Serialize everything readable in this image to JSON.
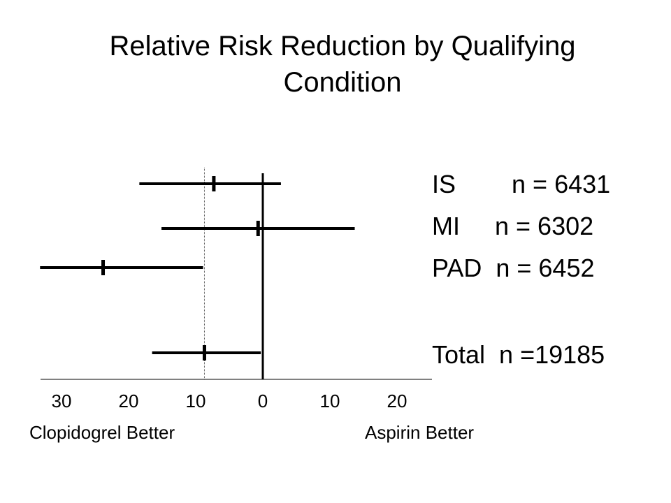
{
  "slide": {
    "title_line1": "Relative Risk Reduction by Qualifying",
    "title_line2": "Condition"
  },
  "chart_data": {
    "type": "forest",
    "title": "Relative Risk Reduction by Qualifying Condition",
    "x_tick_labels": [
      "30",
      "20",
      "10",
      "0",
      "10",
      "20"
    ],
    "x_tick_values": [
      30,
      20,
      10,
      0,
      -10,
      -20
    ],
    "x_axis_note": "RRR %, positive values to the left (Clopidogrel Better), negative to the right (Aspirin Better)",
    "xlim": [
      34,
      -24
    ],
    "reference_line_at": 0,
    "reference_dotted_at": 8.7,
    "direction_labels": {
      "left": "Clopidogrel Better",
      "right": "Aspirin Better"
    },
    "rows": [
      {
        "label": "IS        n = 6431",
        "estimate": 7.3,
        "ci_low": -2.7,
        "ci_high": 18.4
      },
      {
        "label": "MI     n = 6302",
        "estimate": 0.7,
        "ci_low": -13.7,
        "ci_high": 15.1
      },
      {
        "label": "PAD  n = 6452",
        "estimate": 23.8,
        "ci_low": 8.9,
        "ci_high": 33.2
      },
      {
        "label": "Total  n =19185",
        "estimate": 8.7,
        "ci_low": 0.3,
        "ci_high": 16.5
      }
    ]
  }
}
